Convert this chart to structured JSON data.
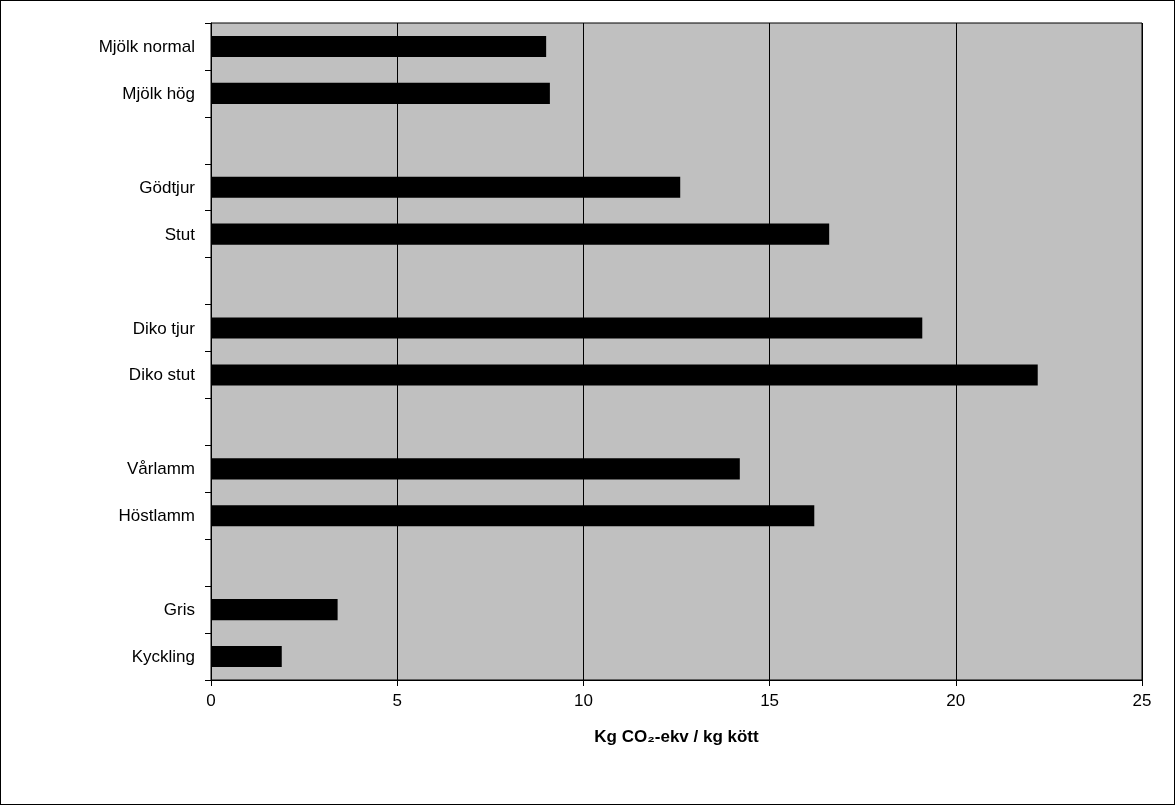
{
  "chart_data": {
    "type": "bar",
    "orientation": "horizontal",
    "xlabel": "Kg CO₂-ekv / kg kött",
    "categories": [
      "Mjölk normal",
      "Mjölk hög",
      null,
      "Gödtjur",
      "Stut",
      null,
      "Diko tjur",
      "Diko stut",
      null,
      "Vårlamm",
      "Höstlamm",
      null,
      "Gris",
      "Kyckling"
    ],
    "values": [
      9.0,
      9.1,
      null,
      12.6,
      16.6,
      null,
      19.1,
      22.2,
      null,
      14.2,
      16.2,
      null,
      3.4,
      1.9
    ],
    "color": "#000000",
    "xlim": [
      0,
      25
    ],
    "xticks": [
      0,
      5,
      10,
      15,
      20,
      25
    ],
    "grid": "x"
  }
}
